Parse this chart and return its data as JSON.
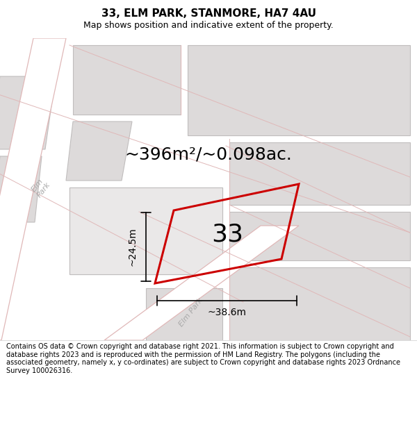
{
  "title": "33, ELM PARK, STANMORE, HA7 4AU",
  "subtitle": "Map shows position and indicative extent of the property.",
  "area_text": "~396m²/~0.098ac.",
  "label_33": "33",
  "dim_width": "~38.6m",
  "dim_height": "~24.5m",
  "footer": "Contains OS data © Crown copyright and database right 2021. This information is subject to Crown copyright and database rights 2023 and is reproduced with the permission of HM Land Registry. The polygons (including the associated geometry, namely x, y co-ordinates) are subject to Crown copyright and database rights 2023 Ordnance Survey 100026316.",
  "bg_color": "#f2f0f0",
  "road_color": "#ffffff",
  "road_border_color": "#e0b8b8",
  "block_color": "#dddada",
  "block_border": "#c0bdbd",
  "red_poly_color": "#cc0000",
  "title_fontsize": 11,
  "subtitle_fontsize": 9,
  "area_fontsize": 18,
  "label_fontsize": 26,
  "dim_fontsize": 10,
  "footer_fontsize": 7.0,
  "road_label_color": "#aaaaaa",
  "road_label_fontsize": 8
}
